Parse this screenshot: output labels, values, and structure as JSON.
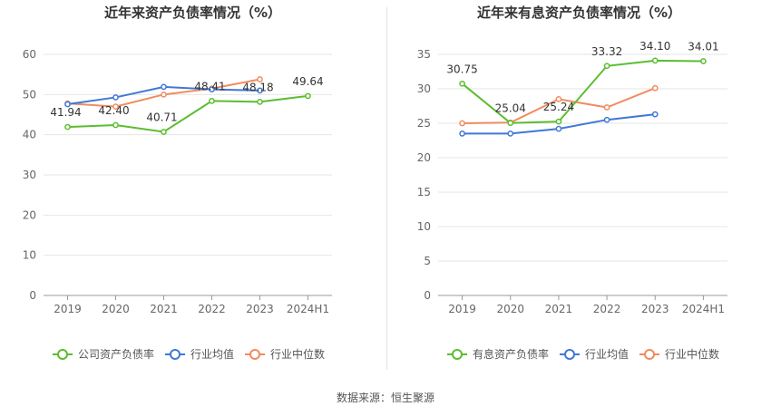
{
  "colors": {
    "company": "#5bbd2f",
    "avg": "#3f78d6",
    "median": "#f08c5e",
    "grid": "#e6e6e6",
    "axis": "#999999",
    "text": "#666666"
  },
  "footer": "数据来源：恒生聚源",
  "chart_data": [
    {
      "type": "line",
      "title": "近年来资产负债率情况（%）",
      "categories": [
        "2019",
        "2020",
        "2021",
        "2022",
        "2023",
        "2024H1"
      ],
      "ylim": [
        0,
        60
      ],
      "yticks": [
        0,
        10,
        20,
        30,
        40,
        50,
        60
      ],
      "grid": true,
      "legend_position": "bottom",
      "series": [
        {
          "name": "公司资产负债率",
          "key": "company",
          "values": [
            41.94,
            42.4,
            40.71,
            48.41,
            48.18,
            49.64
          ],
          "labels": [
            "41.94",
            "42.40",
            "40.71",
            "48.41",
            "48.18",
            "49.64"
          ]
        },
        {
          "name": "行业均值",
          "key": "avg",
          "values": [
            47.6,
            49.3,
            51.9,
            51.3,
            51.0,
            null
          ]
        },
        {
          "name": "行业中位数",
          "key": "median",
          "values": [
            47.8,
            47.0,
            50.0,
            51.5,
            53.8,
            null
          ]
        }
      ]
    },
    {
      "type": "line",
      "title": "近年来有息资产负债率情况（%）",
      "categories": [
        "2019",
        "2020",
        "2021",
        "2022",
        "2023",
        "2024H1"
      ],
      "ylim": [
        0,
        35
      ],
      "yticks": [
        0,
        5,
        10,
        15,
        20,
        25,
        30,
        35
      ],
      "grid": true,
      "legend_position": "bottom",
      "series": [
        {
          "name": "有息资产负债率",
          "key": "company",
          "values": [
            30.75,
            25.04,
            25.24,
            33.32,
            34.1,
            34.01
          ],
          "labels": [
            "30.75",
            "25.04",
            "25.24",
            "33.32",
            "34.10",
            "34.01"
          ]
        },
        {
          "name": "行业均值",
          "key": "avg",
          "values": [
            23.5,
            23.5,
            24.2,
            25.5,
            26.3,
            null
          ]
        },
        {
          "name": "行业中位数",
          "key": "median",
          "values": [
            25.0,
            25.1,
            28.5,
            27.3,
            30.1,
            null
          ]
        }
      ]
    }
  ]
}
